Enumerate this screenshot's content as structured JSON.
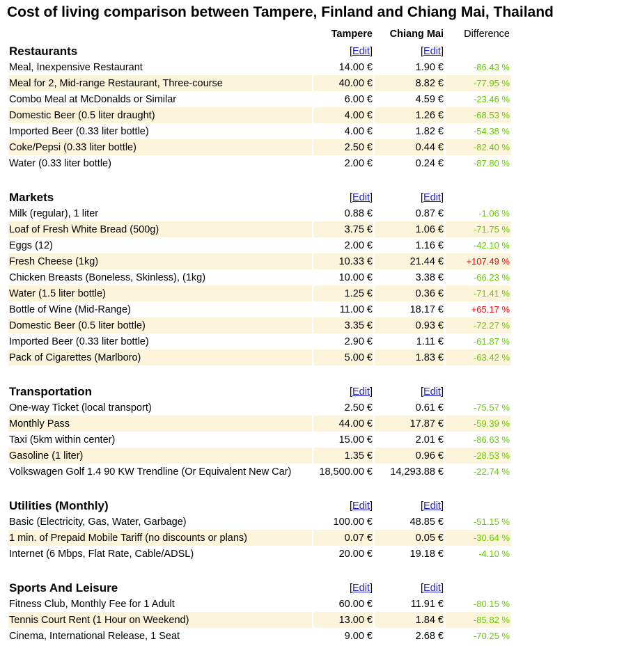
{
  "title": "Cost of living comparison between Tampere, Finland and Chiang Mai, Thailand",
  "headers": {
    "city1": "Tampere",
    "city2": "Chiang Mai",
    "difference": "Difference"
  },
  "edit_label": "Edit",
  "sections": [
    {
      "name": "Restaurants",
      "rows": [
        [
          "Meal, Inexpensive Restaurant",
          "14.00 €",
          "1.90 €",
          "-86.43 %"
        ],
        [
          "Meal for 2, Mid-range Restaurant, Three-course",
          "40.00 €",
          "8.82 €",
          "-77.95 %"
        ],
        [
          "Combo Meal at McDonalds or Similar",
          "6.00 €",
          "4.59 €",
          "-23.46 %"
        ],
        [
          "Domestic Beer (0.5 liter draught)",
          "4.00 €",
          "1.26 €",
          "-68.53 %"
        ],
        [
          "Imported Beer (0.33 liter bottle)",
          "4.00 €",
          "1.82 €",
          "-54.38 %"
        ],
        [
          "Coke/Pepsi (0.33 liter bottle)",
          "2.50 €",
          "0.44 €",
          "-82.40 %"
        ],
        [
          "Water (0.33 liter bottle)",
          "2.00 €",
          "0.24 €",
          "-87.80 %"
        ]
      ]
    },
    {
      "name": "Markets",
      "rows": [
        [
          "Milk (regular), 1 liter",
          "0.88 €",
          "0.87 €",
          "-1.06 %"
        ],
        [
          "Loaf of Fresh White Bread (500g)",
          "3.75 €",
          "1.06 €",
          "-71.75 %"
        ],
        [
          "Eggs (12)",
          "2.00 €",
          "1.16 €",
          "-42.10 %"
        ],
        [
          "Fresh Cheese (1kg)",
          "10.33 €",
          "21.44 €",
          "+107.49 %"
        ],
        [
          "Chicken Breasts (Boneless, Skinless), (1kg)",
          "10.00 €",
          "3.38 €",
          "-66.23 %"
        ],
        [
          "Water (1.5 liter bottle)",
          "1.25 €",
          "0.36 €",
          "-71.41 %"
        ],
        [
          "Bottle of Wine (Mid-Range)",
          "11.00 €",
          "18.17 €",
          "+65.17 %"
        ],
        [
          "Domestic Beer (0.5 liter bottle)",
          "3.35 €",
          "0.93 €",
          "-72.27 %"
        ],
        [
          "Imported Beer (0.33 liter bottle)",
          "2.90 €",
          "1.11 €",
          "-61.87 %"
        ],
        [
          "Pack of Cigarettes (Marlboro)",
          "5.00 €",
          "1.83 €",
          "-63.42 %"
        ]
      ]
    },
    {
      "name": "Transportation",
      "rows": [
        [
          "One-way Ticket (local transport)",
          "2.50 €",
          "0.61 €",
          "-75.57 %"
        ],
        [
          "Monthly Pass",
          "44.00 €",
          "17.87 €",
          "-59.39 %"
        ],
        [
          "Taxi (5km within center)",
          "15.00 €",
          "2.01 €",
          "-86.63 %"
        ],
        [
          "Gasoline (1 liter)",
          "1.35 €",
          "0.96 €",
          "-28.53 %"
        ],
        [
          "Volkswagen Golf 1.4 90 KW Trendline (Or Equivalent New Car)",
          "18,500.00 €",
          "14,293.88 €",
          "-22.74 %"
        ]
      ]
    },
    {
      "name": "Utilities (Monthly)",
      "rows": [
        [
          "Basic (Electricity, Gas, Water, Garbage)",
          "100.00 €",
          "48.85 €",
          "-51.15 %"
        ],
        [
          "1 min. of Prepaid Mobile Tariff (no discounts or plans)",
          "0.07 €",
          "0.05 €",
          "-30.64 %"
        ],
        [
          "Internet (6 Mbps, Flat Rate, Cable/ADSL)",
          "20.00 €",
          "19.18 €",
          "-4.10 %"
        ]
      ]
    },
    {
      "name": "Sports And Leisure",
      "rows": [
        [
          "Fitness Club, Monthly Fee for 1 Adult",
          "60.00 €",
          "11.91 €",
          "-80.15 %"
        ],
        [
          "Tennis Court Rent (1 Hour on Weekend)",
          "13.00 €",
          "1.84 €",
          "-85.82 %"
        ],
        [
          "Cinema, International Release, 1 Seat",
          "9.00 €",
          "2.68 €",
          "-70.25 %"
        ]
      ]
    }
  ],
  "colors": {
    "positive": "#ff0000",
    "negative": "#66cc00",
    "row_alt": "#fdf4dc",
    "link": "#2222cc"
  }
}
